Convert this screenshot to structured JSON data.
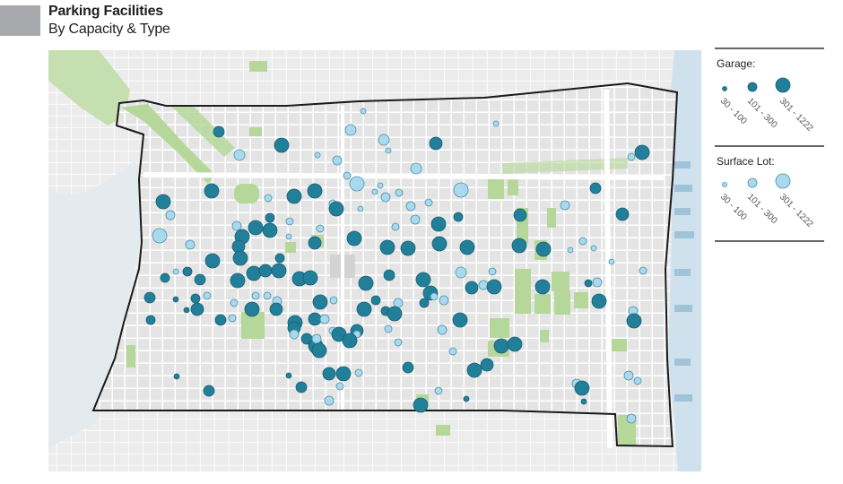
{
  "header": {
    "title": "Parking Facilities",
    "subtitle": "By Capacity & Type"
  },
  "colors": {
    "garage": "#227f99",
    "garage_stroke": "#1a5f72",
    "surface_lot": "#a9d9ec",
    "surface_stroke": "#4d90ab",
    "park": "#b5d89a",
    "water": "#d6e6ef",
    "block": "#e3e3e3",
    "street": "#ffffff",
    "boundary": "#1a1a1a",
    "title_swatch": "#a7a9ac"
  },
  "legend": {
    "garage": {
      "title": "Garage:",
      "labels": [
        "30 - 100",
        "101 - 300",
        "301 - 1222"
      ]
    },
    "surface_lot": {
      "title": "Surface Lot:",
      "labels": [
        "30 - 100",
        "101 - 300",
        "301 - 1222"
      ]
    }
  },
  "map_layers": {
    "boundary": "district-boundary",
    "water": "river",
    "parks": "green-space",
    "points": "parking-facilities"
  }
}
